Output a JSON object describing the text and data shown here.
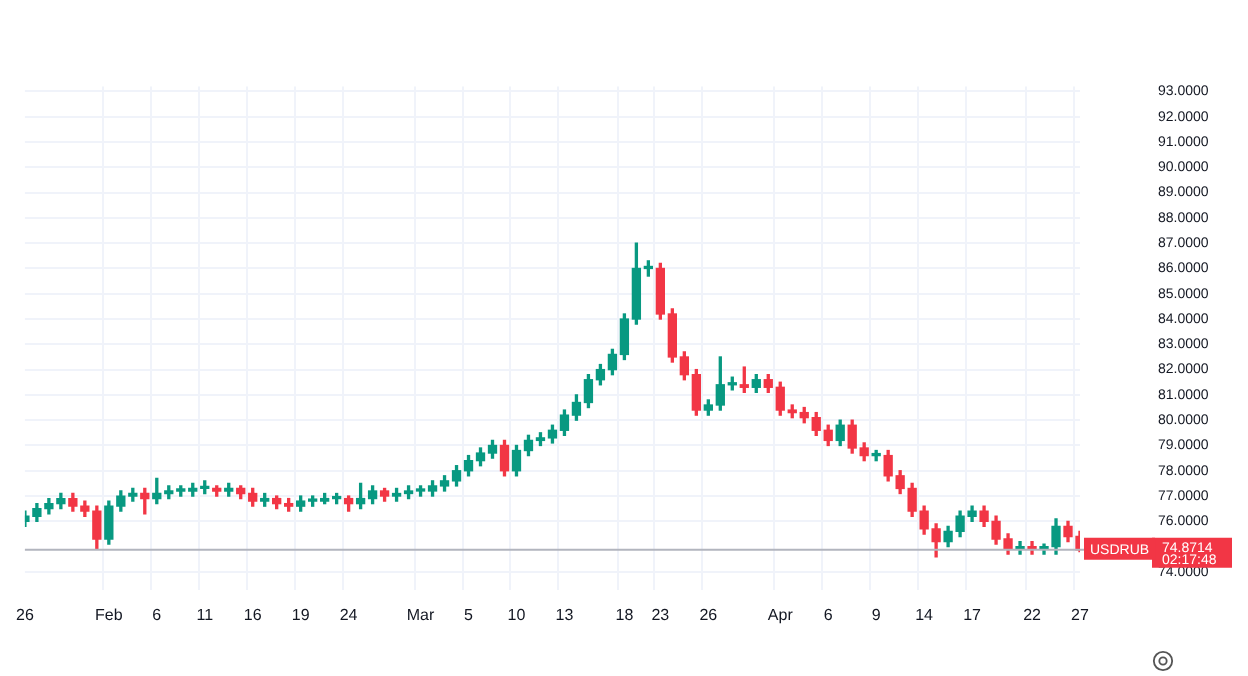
{
  "chart_data": {
    "type": "candlestick",
    "categories": [
      "26",
      null,
      null,
      null,
      null,
      null,
      null,
      "Feb",
      null,
      null,
      null,
      "6",
      null,
      null,
      null,
      "11",
      null,
      null,
      null,
      "16",
      null,
      null,
      null,
      "19",
      null,
      null,
      null,
      "24",
      null,
      null,
      null,
      null,
      null,
      "Mar",
      null,
      null,
      null,
      "5",
      null,
      null,
      null,
      "10",
      null,
      null,
      null,
      "13",
      null,
      null,
      null,
      null,
      "18",
      null,
      null,
      "23",
      null,
      null,
      null,
      "26",
      null,
      null,
      null,
      null,
      null,
      "Apr",
      null,
      null,
      null,
      "6",
      null,
      null,
      null,
      "9",
      null,
      null,
      null,
      "14",
      null,
      null,
      null,
      "17",
      null,
      null,
      null,
      null,
      "22",
      null,
      null,
      null,
      "27"
    ],
    "ohlc": [
      [
        76.0,
        76.4,
        75.8,
        76.2
      ],
      [
        76.2,
        76.7,
        76.0,
        76.5
      ],
      [
        76.5,
        76.9,
        76.3,
        76.7
      ],
      [
        76.7,
        77.1,
        76.5,
        76.9
      ],
      [
        76.9,
        77.1,
        76.4,
        76.6
      ],
      [
        76.6,
        76.8,
        76.2,
        76.4
      ],
      [
        76.4,
        76.6,
        74.9,
        75.3
      ],
      [
        75.3,
        76.8,
        75.1,
        76.6
      ],
      [
        76.6,
        77.2,
        76.4,
        77.0
      ],
      [
        77.0,
        77.3,
        76.8,
        77.1
      ],
      [
        77.1,
        77.3,
        76.3,
        76.9
      ],
      [
        76.9,
        77.7,
        76.7,
        77.1
      ],
      [
        77.1,
        77.4,
        76.9,
        77.2
      ],
      [
        77.2,
        77.4,
        77.0,
        77.2
      ],
      [
        77.2,
        77.5,
        77.0,
        77.3
      ],
      [
        77.3,
        77.6,
        77.1,
        77.3
      ],
      [
        77.3,
        77.4,
        77.0,
        77.2
      ],
      [
        77.2,
        77.5,
        77.0,
        77.3
      ],
      [
        77.3,
        77.4,
        76.9,
        77.1
      ],
      [
        77.1,
        77.3,
        76.6,
        76.8
      ],
      [
        76.8,
        77.1,
        76.6,
        76.9
      ],
      [
        76.9,
        77.0,
        76.5,
        76.7
      ],
      [
        76.7,
        76.9,
        76.4,
        76.6
      ],
      [
        76.6,
        77.0,
        76.4,
        76.8
      ],
      [
        76.8,
        77.0,
        76.6,
        76.8
      ],
      [
        76.8,
        77.1,
        76.7,
        76.9
      ],
      [
        76.9,
        77.1,
        76.7,
        76.9
      ],
      [
        76.9,
        77.0,
        76.4,
        76.7
      ],
      [
        76.7,
        77.5,
        76.5,
        76.9
      ],
      [
        76.9,
        77.4,
        76.7,
        77.2
      ],
      [
        77.2,
        77.3,
        76.8,
        77.0
      ],
      [
        77.0,
        77.3,
        76.8,
        77.1
      ],
      [
        77.1,
        77.4,
        76.9,
        77.2
      ],
      [
        77.2,
        77.4,
        77.0,
        77.2
      ],
      [
        77.2,
        77.6,
        77.0,
        77.4
      ],
      [
        77.4,
        77.8,
        77.2,
        77.6
      ],
      [
        77.6,
        78.2,
        77.4,
        78.0
      ],
      [
        78.0,
        78.6,
        77.8,
        78.4
      ],
      [
        78.4,
        78.9,
        78.2,
        78.7
      ],
      [
        78.7,
        79.2,
        78.5,
        79.0
      ],
      [
        79.0,
        79.2,
        77.8,
        78.0
      ],
      [
        78.0,
        79.0,
        77.8,
        78.8
      ],
      [
        78.8,
        79.4,
        78.6,
        79.2
      ],
      [
        79.2,
        79.5,
        79.0,
        79.3
      ],
      [
        79.3,
        79.8,
        79.1,
        79.6
      ],
      [
        79.6,
        80.4,
        79.4,
        80.2
      ],
      [
        80.2,
        81.0,
        80.0,
        80.7
      ],
      [
        80.7,
        81.8,
        80.5,
        81.6
      ],
      [
        81.6,
        82.2,
        81.4,
        82.0
      ],
      [
        82.0,
        82.8,
        81.8,
        82.6
      ],
      [
        82.6,
        84.2,
        82.4,
        84.0
      ],
      [
        84.0,
        87.0,
        83.8,
        86.0
      ],
      [
        86.0,
        86.3,
        85.7,
        86.0
      ],
      [
        86.0,
        86.2,
        84.0,
        84.2
      ],
      [
        84.2,
        84.4,
        82.3,
        82.5
      ],
      [
        82.5,
        82.7,
        81.6,
        81.8
      ],
      [
        81.8,
        82.0,
        80.2,
        80.4
      ],
      [
        80.4,
        80.8,
        80.2,
        80.6
      ],
      [
        80.6,
        82.5,
        80.4,
        81.4
      ],
      [
        81.4,
        81.7,
        81.2,
        81.4
      ],
      [
        81.4,
        82.1,
        81.1,
        81.3
      ],
      [
        81.3,
        81.8,
        81.1,
        81.6
      ],
      [
        81.6,
        81.8,
        81.1,
        81.3
      ],
      [
        81.3,
        81.5,
        80.2,
        80.4
      ],
      [
        80.4,
        80.6,
        80.1,
        80.3
      ],
      [
        80.3,
        80.5,
        79.9,
        80.1
      ],
      [
        80.1,
        80.3,
        79.4,
        79.6
      ],
      [
        79.6,
        79.8,
        79.0,
        79.2
      ],
      [
        79.2,
        80.0,
        79.0,
        79.8
      ],
      [
        79.8,
        80.0,
        78.7,
        78.9
      ],
      [
        78.9,
        79.1,
        78.4,
        78.6
      ],
      [
        78.6,
        78.8,
        78.4,
        78.6
      ],
      [
        78.6,
        78.8,
        77.6,
        77.8
      ],
      [
        77.8,
        78.0,
        77.1,
        77.3
      ],
      [
        77.3,
        77.5,
        76.2,
        76.4
      ],
      [
        76.4,
        76.6,
        75.5,
        75.7
      ],
      [
        75.7,
        75.9,
        74.6,
        75.2
      ],
      [
        75.2,
        75.8,
        75.0,
        75.6
      ],
      [
        75.6,
        76.4,
        75.4,
        76.2
      ],
      [
        76.2,
        76.6,
        76.0,
        76.4
      ],
      [
        76.4,
        76.6,
        75.8,
        76.0
      ],
      [
        76.0,
        76.2,
        75.1,
        75.3
      ],
      [
        75.3,
        75.5,
        74.7,
        74.9
      ],
      [
        74.9,
        75.2,
        74.7,
        75.0
      ],
      [
        75.0,
        75.2,
        74.7,
        74.9
      ],
      [
        74.9,
        75.1,
        74.7,
        75.0
      ],
      [
        75.0,
        76.1,
        74.7,
        75.8
      ],
      [
        75.8,
        76.0,
        75.2,
        75.4
      ],
      [
        75.4,
        75.6,
        74.8,
        74.87
      ]
    ],
    "colors": [
      "#089981",
      "#089981",
      "#089981",
      "#089981",
      "#f23645",
      "#f23645",
      "#f23645",
      "#089981",
      "#089981",
      "#089981",
      "#f23645",
      "#089981",
      "#089981",
      "#089981",
      "#089981",
      "#089981",
      "#f23645",
      "#089981",
      "#f23645",
      "#f23645",
      "#089981",
      "#f23645",
      "#f23645",
      "#089981",
      "#089981",
      "#089981",
      "#089981",
      "#f23645",
      "#089981",
      "#089981",
      "#f23645",
      "#089981",
      "#089981",
      "#089981",
      "#089981",
      "#089981",
      "#089981",
      "#089981",
      "#089981",
      "#089981",
      "#f23645",
      "#089981",
      "#089981",
      "#089981",
      "#089981",
      "#089981",
      "#089981",
      "#089981",
      "#089981",
      "#089981",
      "#089981",
      "#089981",
      "#089981",
      "#f23645",
      "#f23645",
      "#f23645",
      "#f23645",
      "#089981",
      "#089981",
      "#089981",
      "#f23645",
      "#089981",
      "#f23645",
      "#f23645",
      "#f23645",
      "#f23645",
      "#f23645",
      "#f23645",
      "#089981",
      "#f23645",
      "#f23645",
      "#089981",
      "#f23645",
      "#f23645",
      "#f23645",
      "#f23645",
      "#f23645",
      "#089981",
      "#089981",
      "#089981",
      "#f23645",
      "#f23645",
      "#f23645",
      "#089981",
      "#f23645",
      "#089981",
      "#089981",
      "#f23645",
      "#f23645"
    ],
    "ylim": [
      73.3,
      93.2
    ],
    "yticks": [
      {
        "value": 74,
        "label": "74.0000"
      },
      {
        "value": 76,
        "label": "76.0000"
      },
      {
        "value": 77,
        "label": "77.0000"
      },
      {
        "value": 78,
        "label": "78.0000"
      },
      {
        "value": 79,
        "label": "79.0000"
      },
      {
        "value": 80,
        "label": "80.0000"
      },
      {
        "value": 81,
        "label": "81.0000"
      },
      {
        "value": 82,
        "label": "82.0000"
      },
      {
        "value": 83,
        "label": "83.0000"
      },
      {
        "value": 84,
        "label": "84.0000"
      },
      {
        "value": 85,
        "label": "85.0000"
      },
      {
        "value": 86,
        "label": "86.0000"
      },
      {
        "value": 87,
        "label": "87.0000"
      },
      {
        "value": 88,
        "label": "88.0000"
      },
      {
        "value": 89,
        "label": "89.0000"
      },
      {
        "value": 90,
        "label": "90.0000"
      },
      {
        "value": 91,
        "label": "91.0000"
      },
      {
        "value": 92,
        "label": "92.0000"
      },
      {
        "value": 93,
        "label": "93.0000"
      }
    ],
    "grid": true,
    "legend": false,
    "ref_lines": [
      {
        "axis": "y",
        "value": 74.8714,
        "label": "74.8714",
        "color": "#b2b5be"
      }
    ],
    "annotations": [
      "USDRUB",
      "02:17:48"
    ]
  }
}
